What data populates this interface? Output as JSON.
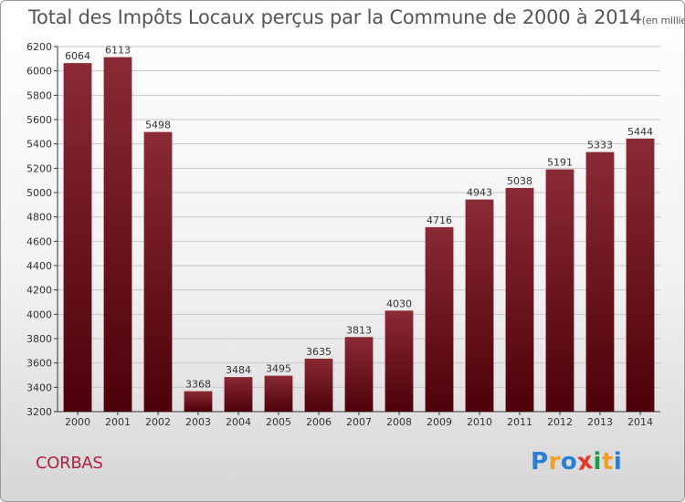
{
  "title": "Total des Impôts Locaux perçus par la Commune de 2000 à 2014",
  "subtitle": "(en milliers d'€)",
  "commune": "CORBAS",
  "logo": {
    "letters": [
      "P",
      "r",
      "o",
      "x",
      "i",
      "t",
      "i"
    ],
    "colors": [
      "#2a7fd4",
      "#f0a020",
      "#2a7fd4",
      "#e23a2a",
      "#1a9a4a",
      "#f0a020",
      "#2a7fd4"
    ]
  },
  "colors": {
    "bar_top": "#8a2a35",
    "bar_bottom": "#4d0008",
    "grid": "#c8c8c8",
    "axis": "#333333",
    "commune": "#b02040"
  },
  "chart_data": {
    "type": "bar",
    "title": "Total des Impôts Locaux perçus par la Commune de 2000 à 2014",
    "subtitle": "(en milliers d'€)",
    "xlabel": "",
    "ylabel": "",
    "categories": [
      "2000",
      "2001",
      "2002",
      "2003",
      "2004",
      "2005",
      "2006",
      "2007",
      "2008",
      "2009",
      "2010",
      "2011",
      "2012",
      "2013",
      "2014"
    ],
    "values": [
      6064,
      6113,
      5498,
      3368,
      3484,
      3495,
      3635,
      3813,
      4030,
      4716,
      4943,
      5038,
      5191,
      5333,
      5444
    ],
    "ylim": [
      3200,
      6200
    ],
    "yticks": [
      3200,
      3400,
      3600,
      3800,
      4000,
      4200,
      4400,
      4600,
      4800,
      5000,
      5200,
      5400,
      5600,
      5800,
      6000,
      6200
    ],
    "grid": true,
    "legend": "none"
  }
}
